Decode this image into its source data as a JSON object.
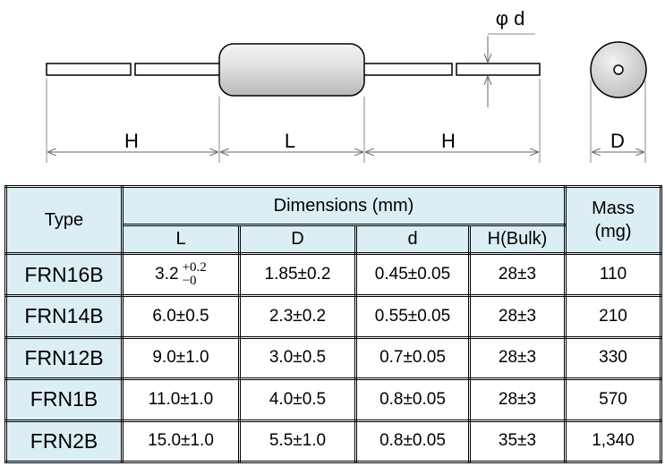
{
  "diagram": {
    "phi_d": "φ d",
    "h_left": "H",
    "l": "L",
    "h_right": "H",
    "d_end": "D"
  },
  "table": {
    "header": {
      "type": "Type",
      "dimensions": "Dimensions (mm)",
      "mass": "Mass\n(mg)",
      "sub": [
        "L",
        "D",
        "d",
        "H(Bulk)"
      ]
    },
    "rows": [
      [
        "FRN16B",
        {
          "value": "3.2",
          "upper": "+0.2",
          "lower": "−0"
        },
        "1.85±0.2",
        "0.45±0.05",
        "28±3",
        "110"
      ],
      [
        "FRN14B",
        "6.0±0.5",
        "2.3±0.2",
        "0.55±0.05",
        "28±3",
        "210"
      ],
      [
        "FRN12B",
        "9.0±1.0",
        "3.0±0.5",
        "0.7±0.05",
        "28±3",
        "330"
      ],
      [
        "FRN1B",
        "11.0±1.0",
        "4.0±0.5",
        "0.8±0.05",
        "28±3",
        "570"
      ],
      [
        "FRN2B",
        "15.0±1.0",
        "5.5±1.0",
        "0.8±0.05",
        "35±3",
        "1,340"
      ]
    ]
  }
}
